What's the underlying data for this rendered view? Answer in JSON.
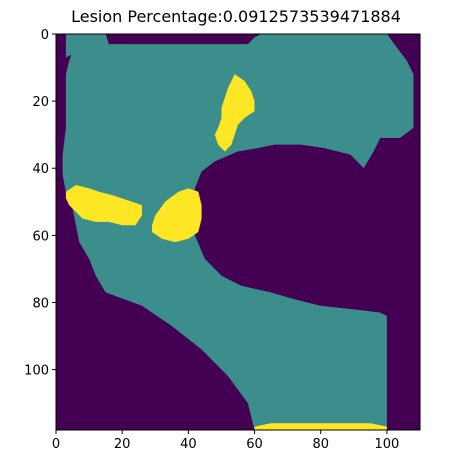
{
  "chart_data": {
    "type": "heatmap",
    "title": "Lesion Percentage:0.0912573539471884",
    "xlabel": "",
    "ylabel": "",
    "colormap": "viridis",
    "grid": false,
    "xlim": [
      0,
      110
    ],
    "ylim": [
      118,
      0
    ],
    "x_ticks": [
      0,
      20,
      40,
      60,
      80,
      100
    ],
    "y_ticks": [
      0,
      20,
      40,
      60,
      80,
      100
    ],
    "classes": [
      {
        "value": 0,
        "color": "#440154"
      },
      {
        "value": 1,
        "color": "#3b8e8c"
      },
      {
        "value": 2,
        "color": "#fde725"
      }
    ],
    "regions": [
      {
        "class": 1,
        "points": [
          [
            3,
            0
          ],
          [
            7,
            0
          ],
          [
            7,
            5
          ],
          [
            3,
            7
          ]
        ]
      },
      {
        "class": 1,
        "points": [
          [
            7,
            0
          ],
          [
            15,
            0
          ],
          [
            16,
            3
          ],
          [
            35,
            3
          ],
          [
            58,
            3
          ],
          [
            60,
            1
          ],
          [
            62,
            0
          ],
          [
            100,
            0
          ],
          [
            103,
            4
          ],
          [
            106,
            8
          ],
          [
            108,
            12
          ],
          [
            108,
            28
          ],
          [
            104,
            31
          ],
          [
            98,
            31
          ],
          [
            96,
            35
          ],
          [
            93,
            40
          ],
          [
            91,
            38
          ],
          [
            89,
            36
          ],
          [
            81,
            34
          ],
          [
            74,
            33
          ],
          [
            66,
            33
          ],
          [
            61,
            34
          ],
          [
            55,
            35
          ],
          [
            48,
            38
          ],
          [
            44,
            41
          ],
          [
            42,
            46
          ],
          [
            42,
            52
          ],
          [
            42,
            60
          ],
          [
            45,
            67
          ],
          [
            50,
            72
          ],
          [
            56,
            75
          ],
          [
            65,
            77
          ],
          [
            72,
            79
          ],
          [
            80,
            81
          ],
          [
            90,
            82
          ],
          [
            98,
            83
          ],
          [
            100,
            84
          ],
          [
            100,
            118
          ],
          [
            60,
            118
          ],
          [
            58,
            110
          ],
          [
            52,
            102
          ],
          [
            44,
            94
          ],
          [
            35,
            87
          ],
          [
            26,
            81
          ],
          [
            15,
            77
          ],
          [
            12,
            72
          ],
          [
            10,
            67
          ],
          [
            7,
            62
          ],
          [
            6,
            57
          ],
          [
            5,
            52
          ],
          [
            3,
            47
          ],
          [
            2,
            42
          ],
          [
            2,
            36
          ],
          [
            3,
            28
          ],
          [
            3,
            20
          ],
          [
            3,
            12
          ],
          [
            4,
            8
          ]
        ]
      },
      {
        "class": 0,
        "points": [
          [
            44,
            41
          ],
          [
            48,
            38
          ],
          [
            55,
            35
          ],
          [
            61,
            34
          ],
          [
            66,
            33
          ],
          [
            74,
            33
          ],
          [
            81,
            34
          ],
          [
            89,
            36
          ],
          [
            91,
            38
          ],
          [
            93,
            40
          ],
          [
            96,
            35
          ],
          [
            98,
            31
          ],
          [
            104,
            31
          ],
          [
            108,
            28
          ],
          [
            108,
            60
          ],
          [
            108,
            82
          ],
          [
            100,
            84
          ],
          [
            98,
            83
          ],
          [
            90,
            82
          ],
          [
            80,
            81
          ],
          [
            72,
            79
          ],
          [
            65,
            77
          ],
          [
            56,
            75
          ],
          [
            50,
            72
          ],
          [
            45,
            67
          ],
          [
            42,
            60
          ],
          [
            42,
            52
          ],
          [
            42,
            46
          ]
        ]
      },
      {
        "class": 2,
        "points": [
          [
            54,
            12
          ],
          [
            57,
            14
          ],
          [
            59,
            17
          ],
          [
            60,
            20
          ],
          [
            60,
            23
          ],
          [
            57,
            25
          ],
          [
            55,
            27
          ],
          [
            54,
            30
          ],
          [
            53,
            33
          ],
          [
            51,
            35
          ],
          [
            49,
            33
          ],
          [
            48,
            30
          ],
          [
            49,
            28
          ],
          [
            50,
            25
          ],
          [
            50,
            22
          ],
          [
            51,
            19
          ],
          [
            52,
            16
          ]
        ]
      },
      {
        "class": 2,
        "points": [
          [
            3,
            47
          ],
          [
            6,
            45
          ],
          [
            10,
            46
          ],
          [
            13,
            47
          ],
          [
            17,
            48
          ],
          [
            20,
            49
          ],
          [
            23,
            50
          ],
          [
            26,
            51
          ],
          [
            26,
            54
          ],
          [
            24,
            57
          ],
          [
            20,
            57
          ],
          [
            16,
            56
          ],
          [
            12,
            56
          ],
          [
            8,
            55
          ],
          [
            6,
            53
          ],
          [
            4,
            51
          ],
          [
            3,
            49
          ]
        ]
      },
      {
        "class": 2,
        "points": [
          [
            30,
            54
          ],
          [
            33,
            50
          ],
          [
            37,
            47
          ],
          [
            40,
            46
          ],
          [
            43,
            47
          ],
          [
            44,
            51
          ],
          [
            44,
            55
          ],
          [
            43,
            59
          ],
          [
            40,
            61
          ],
          [
            36,
            62
          ],
          [
            32,
            61
          ],
          [
            29,
            59
          ],
          [
            29,
            57
          ]
        ]
      },
      {
        "class": 2,
        "points": [
          [
            60,
            117
          ],
          [
            65,
            116
          ],
          [
            72,
            116
          ],
          [
            80,
            116
          ],
          [
            88,
            116
          ],
          [
            95,
            116
          ],
          [
            100,
            117
          ],
          [
            100,
            118
          ],
          [
            60,
            118
          ]
        ]
      }
    ]
  }
}
